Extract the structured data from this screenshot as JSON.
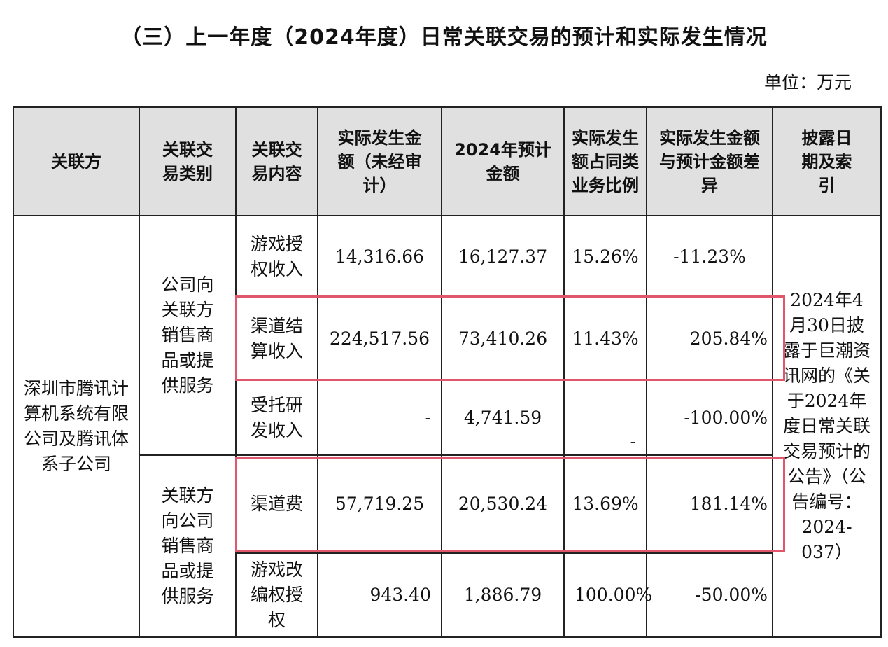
{
  "title": "（三）上一年度（2024年度）日常关联交易的预计和实际发生情况",
  "unit": "单位：万元",
  "headers": {
    "party": "关联方",
    "type": "关联交易类别",
    "content": "关联交易内容",
    "actual": "实际发生金额（未经审计）",
    "estimate": "2024年预计金额",
    "ratio": "实际发生额占同类业务比例",
    "diff": "实际发生金额与预计金额差异",
    "disclosure": "披露日期及索引"
  },
  "party": "深圳市腾讯计算机系统有限公司及腾讯体系子公司",
  "type_sell": "公司向关联方销售商品或提供服务",
  "type_buy": "关联方向公司销售商品或提供服务",
  "disclosure": "2024年4月30日披露于巨潮资讯网的《关于2024年度日常关联交易预计的公告》（公告编号：2024-037）",
  "rows": [
    {
      "content": "游戏授权收入",
      "actual": "14,316.66",
      "estimate": "16,127.37",
      "ratio": "15.26%",
      "diff": "-11.23%"
    },
    {
      "content": "渠道结算收入",
      "actual": "224,517.56",
      "estimate": "73,410.26",
      "ratio": "11.43%",
      "diff": "205.84%"
    },
    {
      "content": "受托研发收入",
      "actual": "-",
      "estimate": "4,741.59",
      "ratio": "-",
      "diff": "-100.00%"
    },
    {
      "content": "渠道费",
      "actual": "57,719.25",
      "estimate": "20,530.24",
      "ratio": "13.69%",
      "diff": "181.14%"
    },
    {
      "content": "游戏改编权授权",
      "actual": "943.40",
      "estimate": "1,886.79",
      "ratio": "100.00%",
      "diff": "-50.00%"
    }
  ]
}
